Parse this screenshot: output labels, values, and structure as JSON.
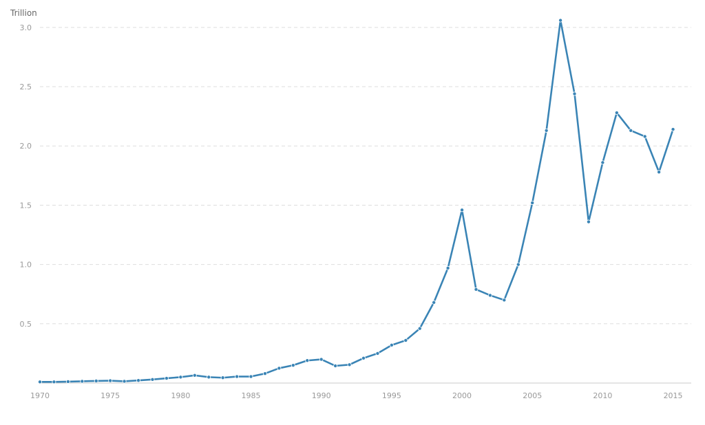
{
  "chart_data": {
    "type": "line",
    "unit_label": "Trillion",
    "x": [
      1970,
      1971,
      1972,
      1973,
      1974,
      1975,
      1976,
      1977,
      1978,
      1979,
      1980,
      1981,
      1982,
      1983,
      1984,
      1985,
      1986,
      1987,
      1988,
      1989,
      1990,
      1991,
      1992,
      1993,
      1994,
      1995,
      1996,
      1997,
      1998,
      1999,
      2000,
      2001,
      2002,
      2003,
      2004,
      2005,
      2006,
      2007,
      2008,
      2009,
      2010,
      2011,
      2012,
      2013,
      2014,
      2015
    ],
    "series": [
      {
        "values": [
          0.01,
          0.01,
          0.012,
          0.015,
          0.018,
          0.02,
          0.015,
          0.022,
          0.03,
          0.04,
          0.05,
          0.065,
          0.05,
          0.045,
          0.055,
          0.055,
          0.08,
          0.125,
          0.15,
          0.19,
          0.2,
          0.145,
          0.155,
          0.21,
          0.25,
          0.32,
          0.36,
          0.46,
          0.68,
          0.97,
          1.46,
          0.79,
          0.74,
          0.7,
          1.0,
          1.52,
          2.13,
          3.06,
          2.44,
          1.36,
          1.86,
          2.28,
          2.13,
          2.08,
          1.78,
          2.14
        ],
        "color": "#3a84b5"
      }
    ],
    "x_ticks": [
      1970,
      1975,
      1980,
      1985,
      1990,
      1995,
      2000,
      2005,
      2010,
      2015
    ],
    "y_ticks": [
      0.5,
      1.0,
      1.5,
      2.0,
      2.5,
      3.0
    ],
    "y_tick_labels": [
      "0.5",
      "1.0",
      "1.5",
      "2.0",
      "2.5",
      "3.0"
    ],
    "xlim": [
      1970,
      2016
    ],
    "ylim": [
      0,
      3.15
    ],
    "grid": true
  }
}
